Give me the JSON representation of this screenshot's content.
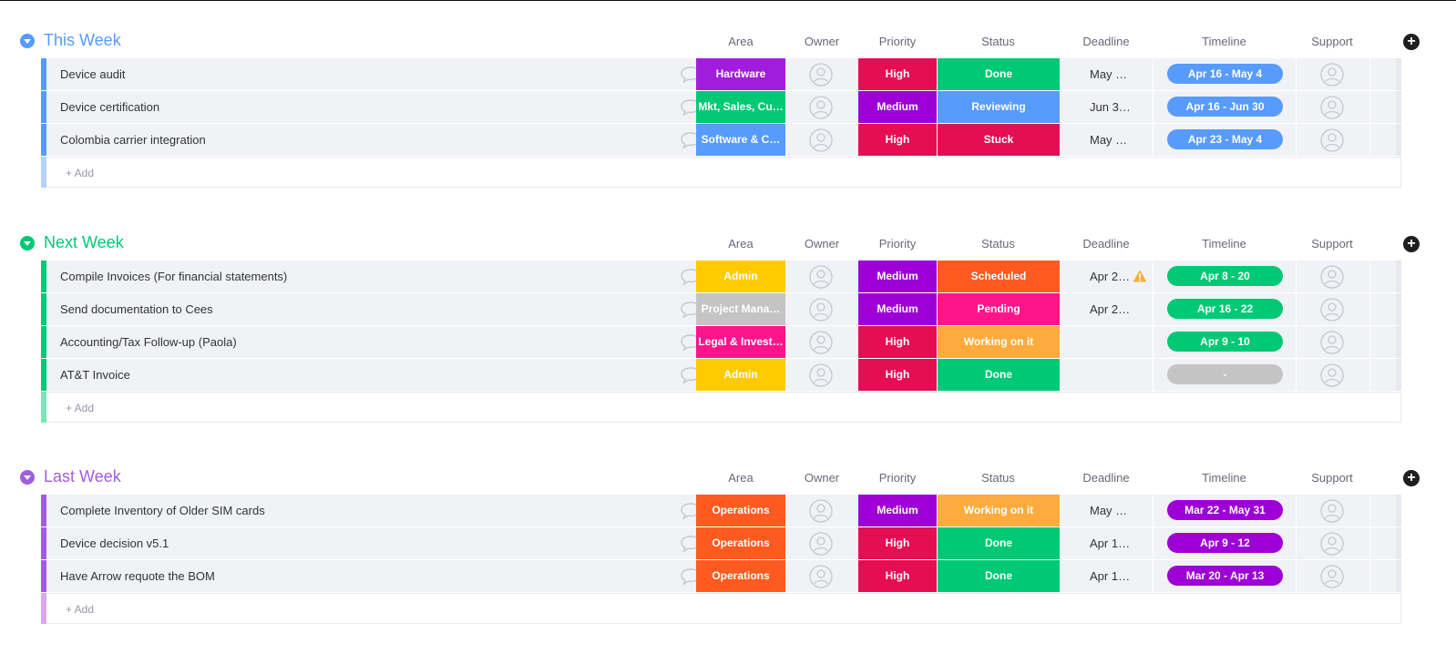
{
  "colors": {
    "this_week": "#579bfc",
    "next_week": "#00c875",
    "last_week": "#a25ddc",
    "purple": "#a21ddb",
    "green": "#00c875",
    "blue": "#579bfc",
    "red": "#e2445c",
    "orange": "#fdab3d",
    "dark_orange": "#ff5a1f",
    "pink": "#ff158a",
    "gray": "#c4c4c4",
    "yellow": "#ffcb00",
    "crimson": "#e50d54",
    "violet": "#9d00d6"
  },
  "columns": {
    "area": "Area",
    "owner": "Owner",
    "priority": "Priority",
    "status": "Status",
    "deadline": "Deadline",
    "timeline": "Timeline",
    "support": "Support"
  },
  "add_item_label": "+ Add",
  "groups": [
    {
      "title": "This Week",
      "items": [
        {
          "name": "Device audit",
          "area": "Hardware",
          "priority": "High",
          "status": "Done",
          "deadline": "May …",
          "timeline": "Apr 16 - May 4"
        },
        {
          "name": "Device certification",
          "area": "Mkt, Sales, Cu…",
          "priority": "Medium",
          "status": "Reviewing",
          "deadline": "Jun 3…",
          "timeline": "Apr 16 - Jun 30"
        },
        {
          "name": "Colombia carrier integration",
          "area": "Software & C…",
          "priority": "High",
          "status": "Stuck",
          "deadline": "May …",
          "timeline": "Apr 23 - May 4"
        }
      ]
    },
    {
      "title": "Next Week",
      "items": [
        {
          "name": "Compile Invoices (For financial statements)",
          "area": "Admin",
          "priority": "Medium",
          "status": "Scheduled",
          "deadline": "Apr 2…",
          "deadline_warning": true,
          "timeline": "Apr 8 - 20"
        },
        {
          "name": "Send documentation to Cees",
          "area": "Project Mana…",
          "priority": "Medium",
          "status": "Pending",
          "deadline": "Apr 2…",
          "timeline": "Apr 16 - 22"
        },
        {
          "name": "Accounting/Tax Follow-up (Paola)",
          "area": "Legal & Invest…",
          "priority": "High",
          "status": "Working on it",
          "deadline": "",
          "timeline": "Apr 9 - 10"
        },
        {
          "name": "AT&T Invoice",
          "area": "Admin",
          "priority": "High",
          "status": "Done",
          "deadline": "",
          "timeline": "-"
        }
      ]
    },
    {
      "title": "Last Week",
      "items": [
        {
          "name": "Complete Inventory of Older SIM cards",
          "area": "Operations",
          "priority": "Medium",
          "status": "Working on it",
          "deadline": "May …",
          "timeline": "Mar 22 - May 31"
        },
        {
          "name": "Device decision v5.1",
          "area": "Operations",
          "priority": "High",
          "status": "Done",
          "deadline": "Apr 1…",
          "timeline": "Apr 9 - 12"
        },
        {
          "name": "Have Arrow requote the BOM",
          "area": "Operations",
          "priority": "High",
          "status": "Done",
          "deadline": "Apr 1…",
          "timeline": "Mar 20 - Apr 13"
        }
      ]
    }
  ]
}
